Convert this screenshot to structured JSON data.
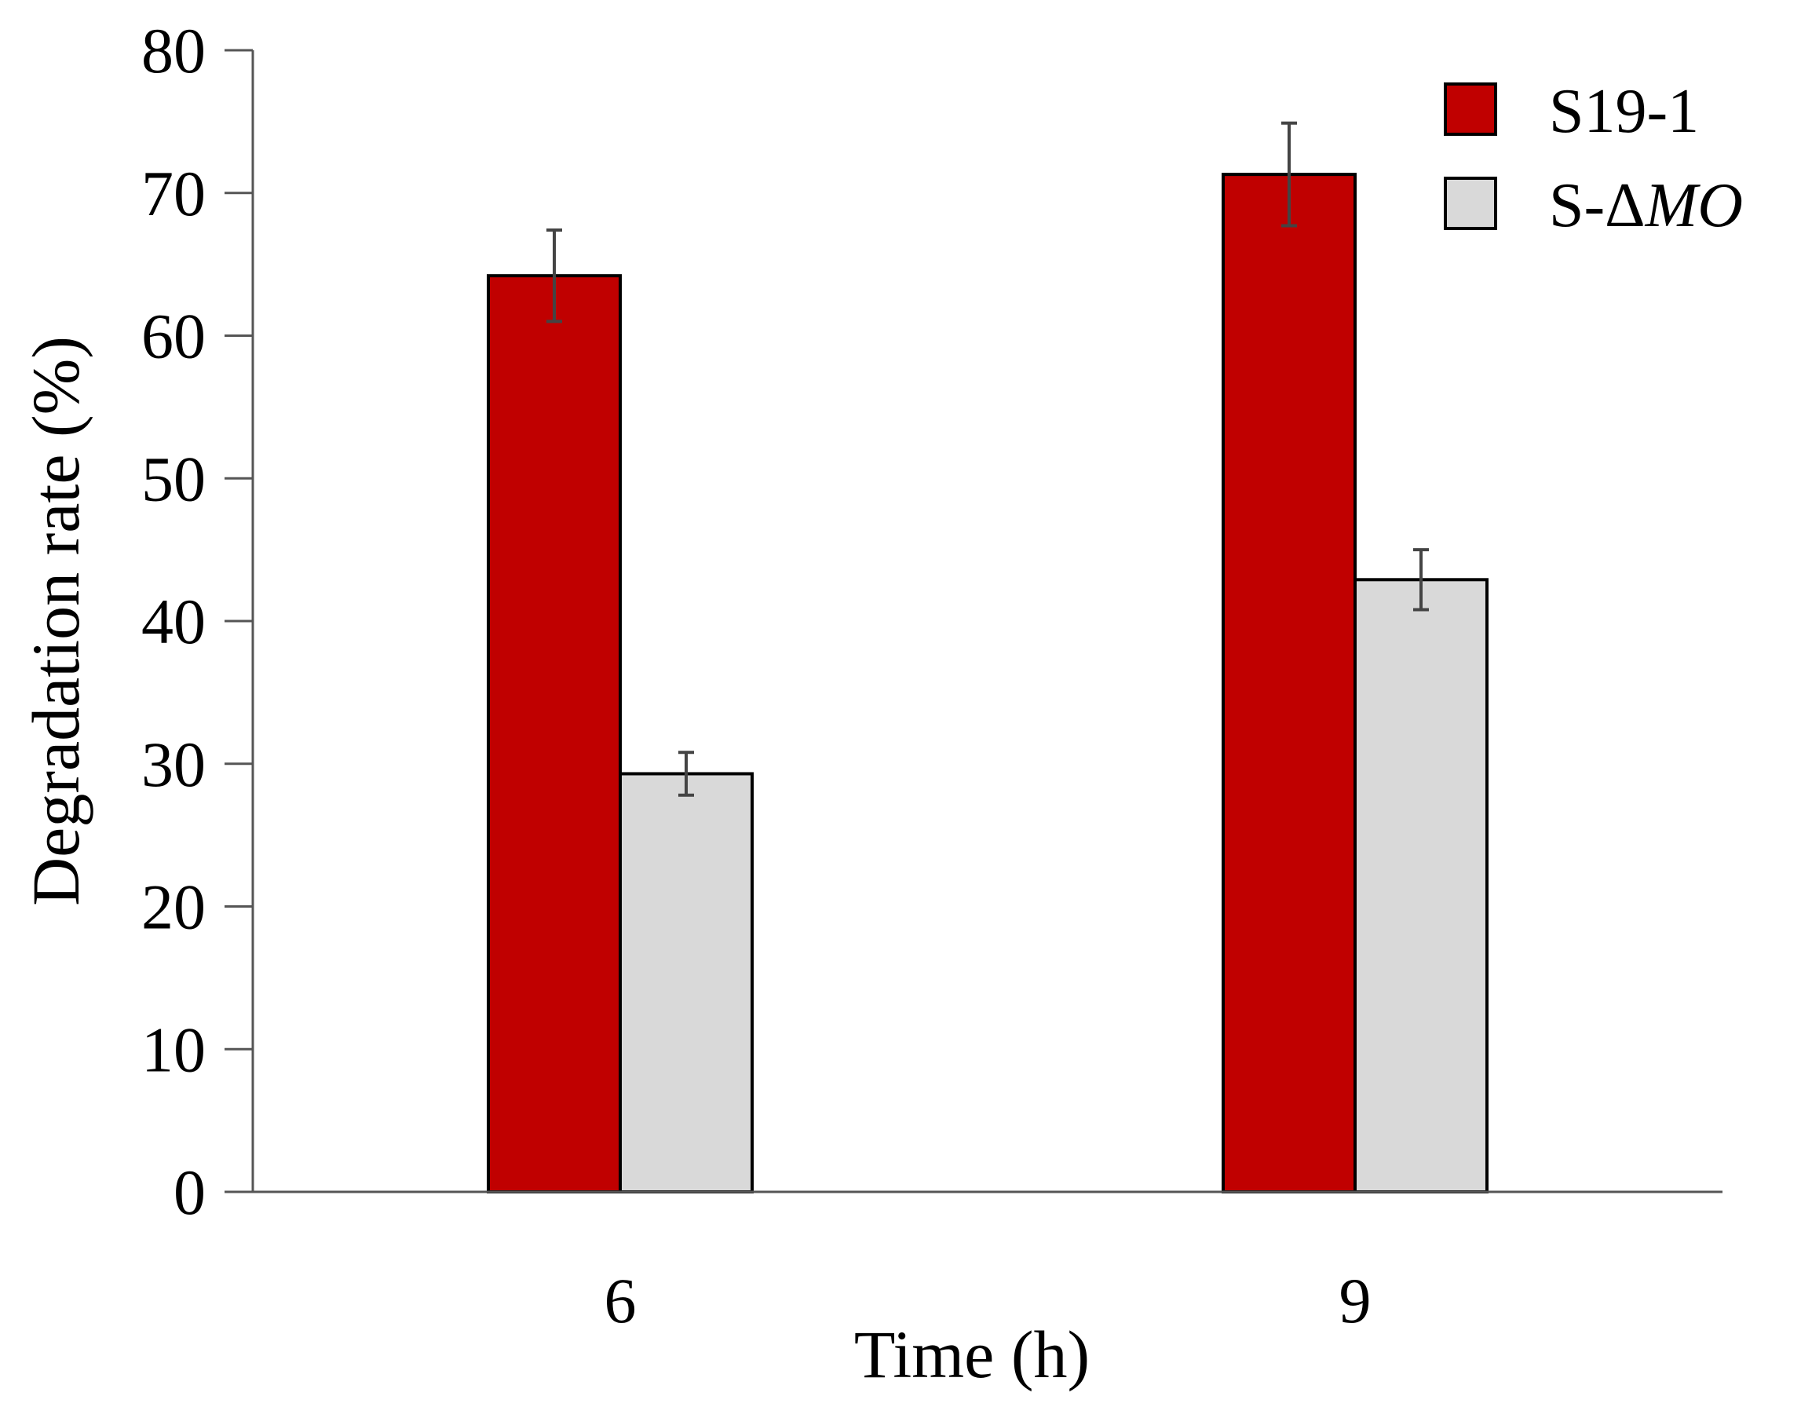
{
  "chart_data": {
    "type": "bar",
    "title": "",
    "xlabel": "Time (h)",
    "ylabel": "Degradation rate (%)",
    "categories": [
      "6",
      "9"
    ],
    "ylim": [
      0,
      80
    ],
    "yticks": [
      0,
      10,
      20,
      30,
      40,
      50,
      60,
      70,
      80
    ],
    "ytick_labels": [
      "0",
      "10",
      "20",
      "30",
      "40",
      "50",
      "60",
      "70",
      "80"
    ],
    "grid": false,
    "legend_position": "top-right",
    "series": [
      {
        "name": "S19-1",
        "legend_prefix": "S19-1",
        "legend_italic": "",
        "color": "#c00000",
        "values": [
          64.2,
          71.3
        ],
        "errors": [
          3.2,
          3.6
        ]
      },
      {
        "name": "S-ΔMO",
        "legend_prefix": "S-Δ",
        "legend_italic": "MO",
        "color": "#d9d9d9",
        "values": [
          29.3,
          42.9
        ],
        "errors": [
          1.5,
          2.1
        ]
      }
    ]
  }
}
